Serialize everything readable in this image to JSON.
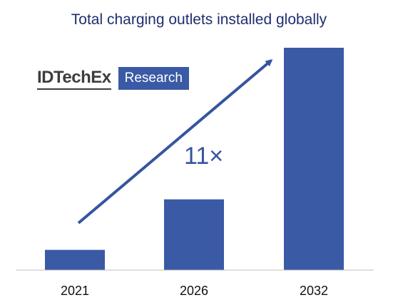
{
  "chart_data": {
    "type": "bar",
    "title": "Total charging outlets installed globally",
    "categories": [
      "2021",
      "2026",
      "2032"
    ],
    "values": [
      1,
      3.5,
      11
    ],
    "ylim": [
      0,
      11
    ],
    "xlabel": "",
    "ylabel": "",
    "grid": false,
    "annotation": "11×",
    "bar_color": "#3a5aa5"
  },
  "logo": {
    "brand": "IDTechEx",
    "tag": "Research"
  },
  "colors": {
    "title": "#1f2f6e",
    "bar": "#3a5aa5",
    "arrow": "#35559f",
    "axis": "#bfbfbf"
  }
}
